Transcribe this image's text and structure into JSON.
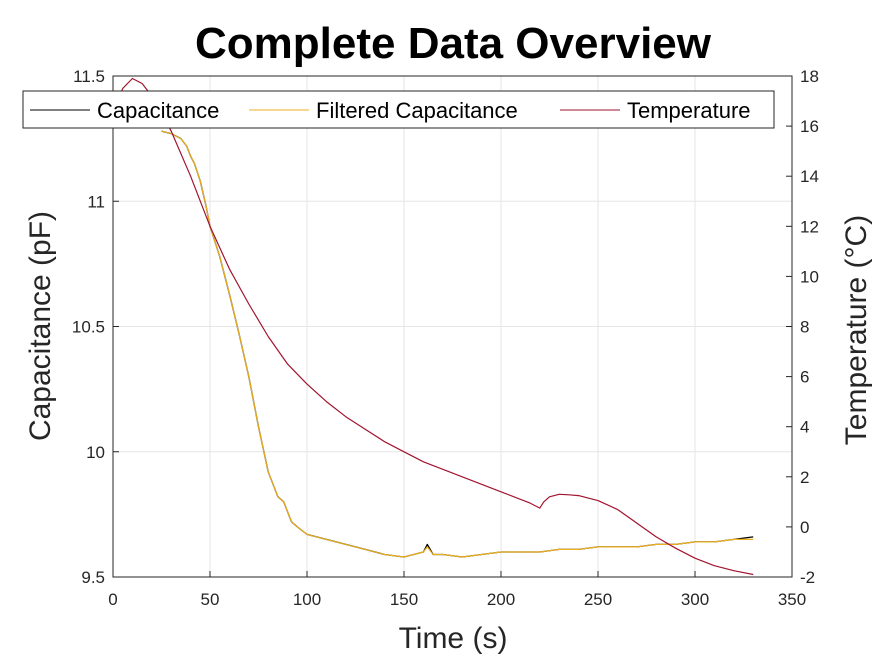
{
  "chart_data": {
    "type": "line",
    "title": "Complete Data Overview",
    "xlabel": "Time (s)",
    "ylabel_left": "Capacitance (pF)",
    "ylabel_right": "Temperature (°C)",
    "xlim": [
      0,
      350
    ],
    "ylim_left": [
      9.5,
      11.5
    ],
    "ylim_right": [
      -2,
      18
    ],
    "x_ticks": [
      "0",
      "50",
      "100",
      "150",
      "200",
      "250",
      "300",
      "350"
    ],
    "y_ticks_left": [
      "9.5",
      "10",
      "10.5",
      "11",
      "11.5"
    ],
    "y_ticks_right": [
      "-2",
      "0",
      "2",
      "4",
      "6",
      "8",
      "10",
      "12",
      "14",
      "16",
      "18"
    ],
    "grid": true,
    "legend_position": "top",
    "legend": [
      "Capacitance",
      "Filtered Capacitance",
      "Temperature"
    ],
    "colors": {
      "capacitance": "#000000",
      "filtered": "#EDB120",
      "temperature": "#A2142F",
      "grid": "#e6e6e6",
      "axis": "#262626"
    },
    "series": [
      {
        "name": "Capacitance",
        "axis": "left",
        "x": [
          25,
          30,
          35,
          38,
          40,
          42,
          45,
          48,
          50,
          55,
          60,
          65,
          70,
          75,
          80,
          85,
          88,
          90,
          92,
          95,
          100,
          105,
          110,
          120,
          130,
          140,
          150,
          155,
          160,
          162,
          165,
          170,
          180,
          190,
          200,
          210,
          220,
          230,
          240,
          250,
          260,
          270,
          280,
          290,
          300,
          310,
          320,
          330
        ],
        "y": [
          11.28,
          11.27,
          11.25,
          11.22,
          11.18,
          11.15,
          11.08,
          10.98,
          10.9,
          10.78,
          10.63,
          10.47,
          10.3,
          10.1,
          9.92,
          9.82,
          9.8,
          9.76,
          9.72,
          9.7,
          9.67,
          9.66,
          9.65,
          9.63,
          9.61,
          9.59,
          9.58,
          9.59,
          9.6,
          9.63,
          9.59,
          9.59,
          9.58,
          9.59,
          9.6,
          9.6,
          9.6,
          9.61,
          9.61,
          9.62,
          9.62,
          9.62,
          9.63,
          9.63,
          9.64,
          9.64,
          9.65,
          9.66
        ]
      },
      {
        "name": "Filtered Capacitance",
        "axis": "left",
        "x": [
          25,
          30,
          35,
          38,
          40,
          42,
          45,
          48,
          50,
          55,
          60,
          65,
          70,
          75,
          80,
          85,
          88,
          90,
          92,
          95,
          100,
          105,
          110,
          120,
          130,
          140,
          150,
          155,
          160,
          162,
          165,
          170,
          180,
          190,
          200,
          210,
          220,
          230,
          240,
          250,
          260,
          270,
          280,
          290,
          300,
          310,
          320,
          330
        ],
        "y": [
          11.28,
          11.27,
          11.25,
          11.22,
          11.18,
          11.15,
          11.08,
          10.98,
          10.9,
          10.78,
          10.63,
          10.47,
          10.3,
          10.1,
          9.92,
          9.82,
          9.8,
          9.76,
          9.72,
          9.7,
          9.67,
          9.66,
          9.65,
          9.63,
          9.61,
          9.59,
          9.58,
          9.59,
          9.6,
          9.62,
          9.59,
          9.59,
          9.58,
          9.59,
          9.6,
          9.6,
          9.6,
          9.61,
          9.61,
          9.62,
          9.62,
          9.62,
          9.63,
          9.63,
          9.64,
          9.64,
          9.65,
          9.65
        ]
      },
      {
        "name": "Temperature",
        "axis": "right",
        "x": [
          0,
          5,
          10,
          15,
          20,
          25,
          30,
          40,
          50,
          60,
          70,
          80,
          90,
          100,
          110,
          120,
          130,
          140,
          150,
          160,
          170,
          180,
          190,
          200,
          210,
          215,
          220,
          222,
          225,
          230,
          235,
          240,
          250,
          260,
          270,
          280,
          290,
          300,
          310,
          320,
          330
        ],
        "y": [
          16.5,
          17.5,
          17.9,
          17.7,
          17.2,
          16.5,
          15.8,
          14.0,
          12.0,
          10.3,
          8.9,
          7.6,
          6.5,
          5.7,
          5.0,
          4.4,
          3.9,
          3.4,
          3.0,
          2.6,
          2.3,
          2.0,
          1.7,
          1.4,
          1.1,
          0.95,
          0.75,
          1.0,
          1.2,
          1.3,
          1.28,
          1.25,
          1.05,
          0.7,
          0.15,
          -0.4,
          -0.85,
          -1.25,
          -1.55,
          -1.75,
          -1.9
        ]
      }
    ]
  }
}
